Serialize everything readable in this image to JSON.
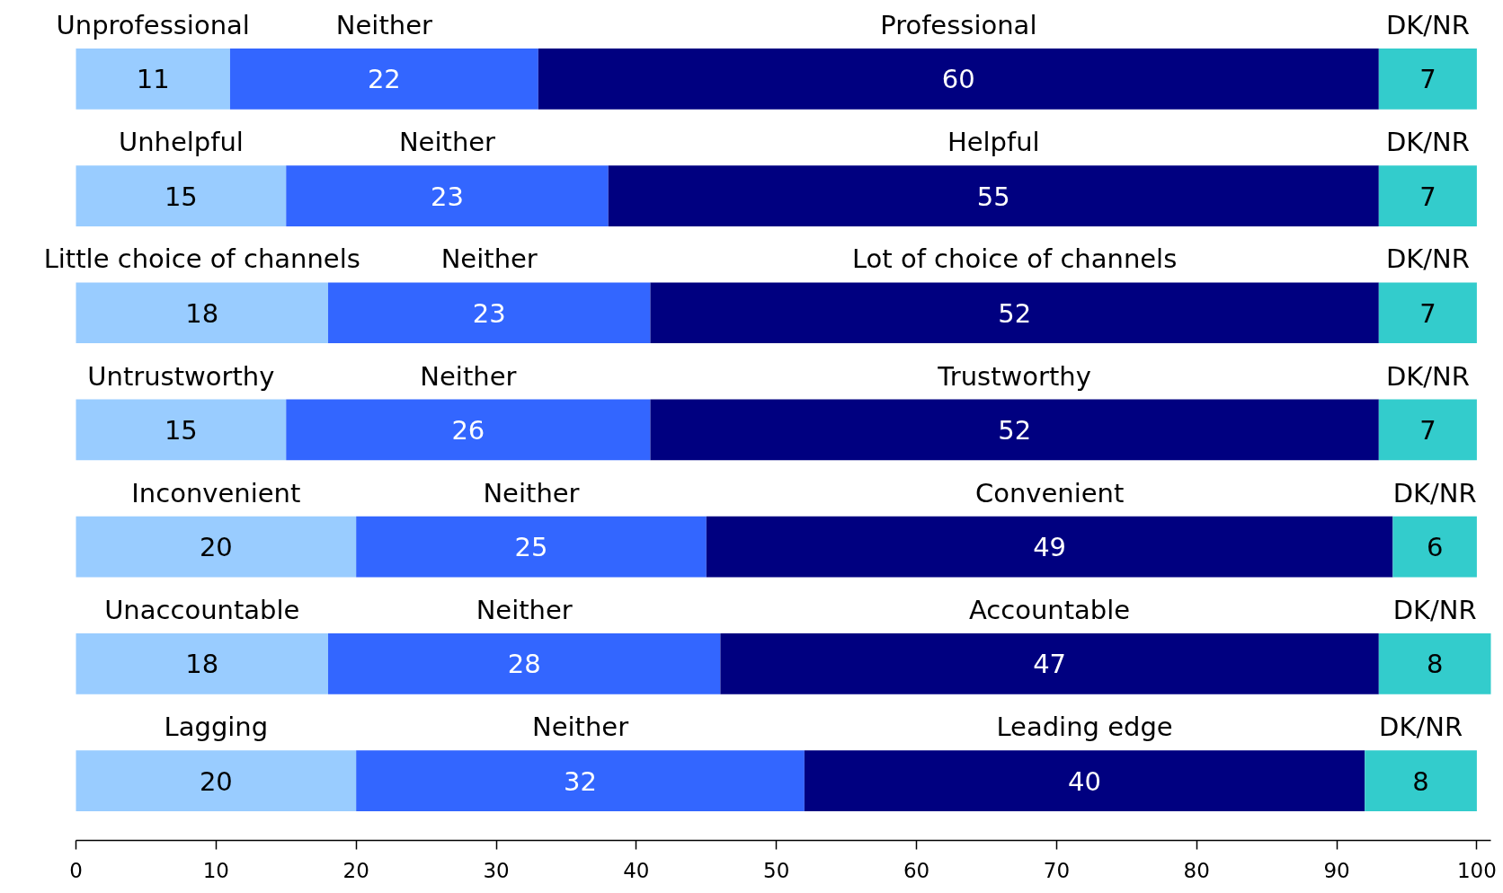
{
  "chart_data": {
    "type": "bar",
    "orientation": "horizontal",
    "stacked": true,
    "categories": [
      null,
      null,
      null,
      null,
      null,
      null,
      null
    ],
    "series": [
      {
        "color": "#99ccff",
        "values": [
          11,
          15,
          18,
          15,
          20,
          18,
          20
        ]
      },
      {
        "color": "#3366ff",
        "values": [
          22,
          23,
          23,
          26,
          25,
          28,
          32
        ]
      },
      {
        "color": "#000080",
        "values": [
          60,
          55,
          52,
          52,
          49,
          47,
          40
        ]
      },
      {
        "color": "#33cccc",
        "values": [
          7,
          7,
          7,
          7,
          6,
          8,
          8
        ]
      }
    ],
    "annotations": [
      "Unprofessional",
      "Neither",
      "Professional",
      "DK/NR",
      "Unhelpful",
      "Neither",
      "Helpful",
      "DK/NR",
      "Little choice of channels",
      "Neither",
      "Lot of choice of channels",
      "DK/NR",
      "Untrustworthy",
      "Neither",
      "Trustworthy",
      "DK/NR",
      "Inconvenient",
      "Neither",
      "Convenient",
      "DK/NR",
      "Unaccountable",
      "Neither",
      "Accountable",
      "DK/NR",
      "Lagging",
      "Neither",
      "Leading edge",
      "DK/NR"
    ],
    "data_labels": true,
    "xlim": [
      0,
      101
    ],
    "xticks": [
      0,
      10,
      20,
      30,
      40,
      50,
      60,
      70,
      80,
      90,
      100
    ],
    "tick_labels": "x",
    "grid": false
  }
}
